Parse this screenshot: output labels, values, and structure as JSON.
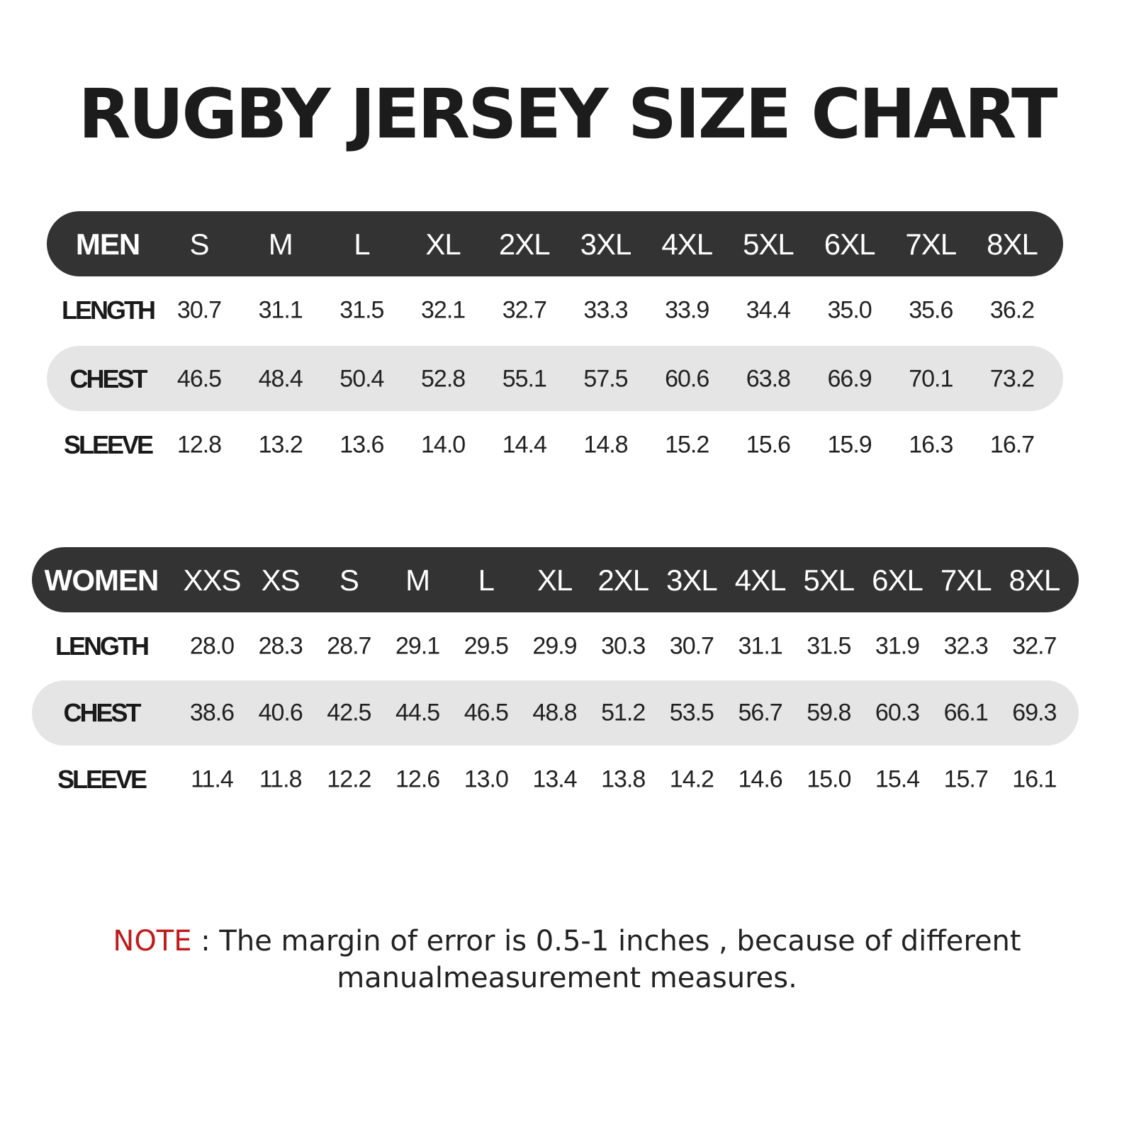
{
  "title": "RUGBY JERSEY SIZE CHART",
  "colors": {
    "header_bg": "#333333",
    "stripe_bg": "#e5e5e5",
    "note_label": "#c01a1a"
  },
  "tables": [
    {
      "group": "MEN",
      "sizes": [
        "S",
        "M",
        "L",
        "XL",
        "2XL",
        "3XL",
        "4XL",
        "5XL",
        "6XL",
        "7XL",
        "8XL"
      ],
      "rows": [
        {
          "label": "LENGTH",
          "values": [
            "30.7",
            "31.1",
            "31.5",
            "32.1",
            "32.7",
            "33.3",
            "33.9",
            "34.4",
            "35.0",
            "35.6",
            "36.2"
          ]
        },
        {
          "label": "CHEST",
          "values": [
            "46.5",
            "48.4",
            "50.4",
            "52.8",
            "55.1",
            "57.5",
            "60.6",
            "63.8",
            "66.9",
            "70.1",
            "73.2"
          ]
        },
        {
          "label": "SLEEVE",
          "values": [
            "12.8",
            "13.2",
            "13.6",
            "14.0",
            "14.4",
            "14.8",
            "15.2",
            "15.6",
            "15.9",
            "16.3",
            "16.7"
          ]
        }
      ]
    },
    {
      "group": "WOMEN",
      "sizes": [
        "XXS",
        "XS",
        "S",
        "M",
        "L",
        "XL",
        "2XL",
        "3XL",
        "4XL",
        "5XL",
        "6XL",
        "7XL",
        "8XL"
      ],
      "rows": [
        {
          "label": "LENGTH",
          "values": [
            "28.0",
            "28.3",
            "28.7",
            "29.1",
            "29.5",
            "29.9",
            "30.3",
            "30.7",
            "31.1",
            "31.5",
            "31.9",
            "32.3",
            "32.7"
          ]
        },
        {
          "label": "CHEST",
          "values": [
            "38.6",
            "40.6",
            "42.5",
            "44.5",
            "46.5",
            "48.8",
            "51.2",
            "53.5",
            "56.7",
            "59.8",
            "60.3",
            "66.1",
            "69.3"
          ]
        },
        {
          "label": "SLEEVE",
          "values": [
            "11.4",
            "11.8",
            "12.2",
            "12.6",
            "13.0",
            "13.4",
            "13.8",
            "14.2",
            "14.6",
            "15.0",
            "15.4",
            "15.7",
            "16.1"
          ]
        }
      ]
    }
  ],
  "note": {
    "label": "NOTE",
    "line1": " : The margin of error is 0.5-1 inches , because of different",
    "line2": "manualmeasurement measures."
  }
}
